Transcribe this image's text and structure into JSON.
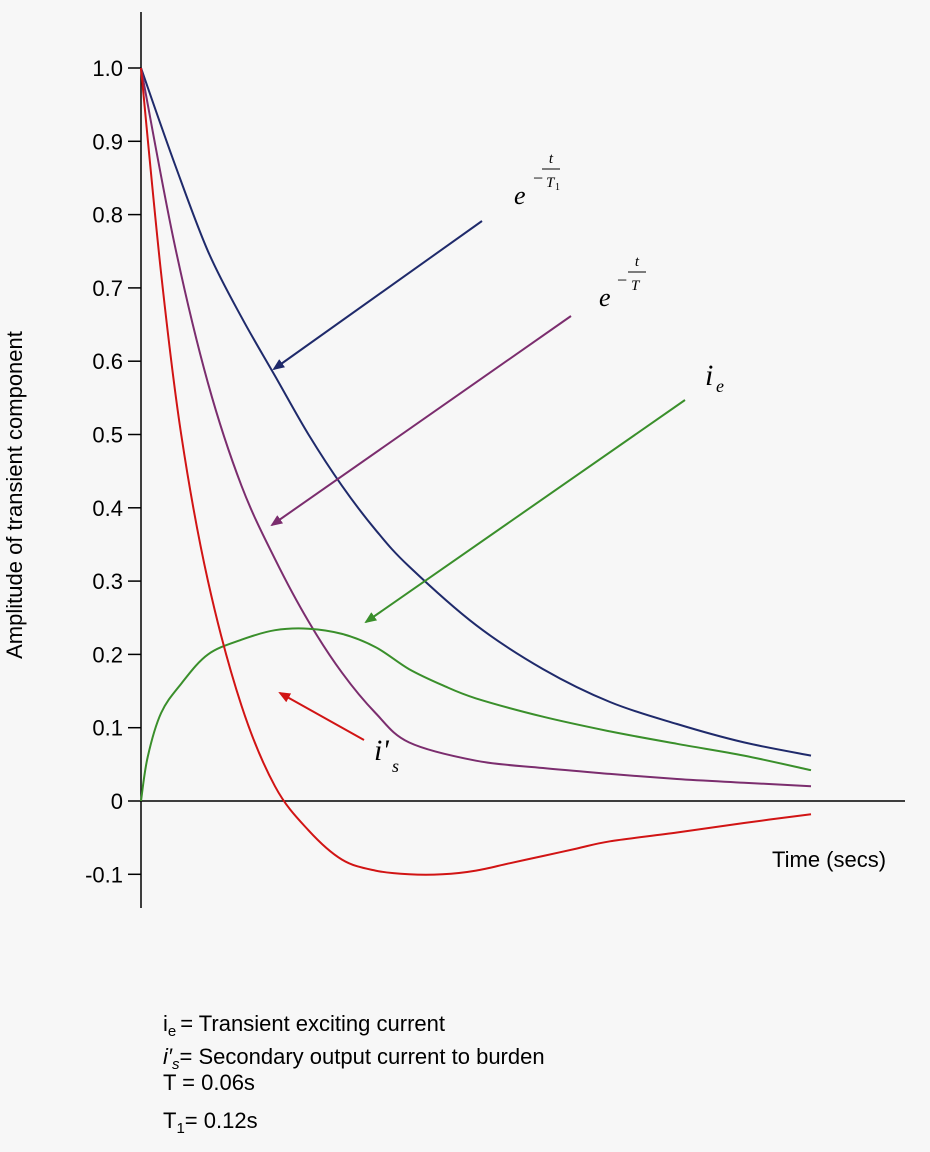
{
  "chart_data": {
    "type": "line",
    "ylabel": "Amplitude of transient component",
    "xlabel": "Time (secs)",
    "ylim": [
      -0.1,
      1.0
    ],
    "yticks": [
      "1.0",
      "0.9",
      "0.8",
      "0.7",
      "0.6",
      "0.5",
      "0.4",
      "0.3",
      "0.2",
      "0.1",
      "0",
      "-0.1"
    ],
    "ytick_values": [
      1.0,
      0.9,
      0.8,
      0.7,
      0.6,
      0.5,
      0.4,
      0.3,
      0.2,
      0.1,
      0,
      -0.1
    ],
    "x_units": "arbitrary (no tick labels)",
    "xlim": [
      0,
      1
    ],
    "grid": false,
    "series": [
      {
        "name": "e^(-t/T1)",
        "color": "#1f2a6b",
        "x": [
          0,
          0.05,
          0.1,
          0.15,
          0.2,
          0.25,
          0.3,
          0.35,
          0.4,
          0.5,
          0.6,
          0.7,
          0.8,
          0.9,
          1.0
        ],
        "y": [
          1.0,
          0.87,
          0.75,
          0.66,
          0.58,
          0.5,
          0.43,
          0.37,
          0.32,
          0.24,
          0.18,
          0.135,
          0.105,
          0.08,
          0.062
        ]
      },
      {
        "name": "e^(-t/T)",
        "color": "#7b2d6e",
        "x": [
          0,
          0.05,
          0.1,
          0.15,
          0.2,
          0.25,
          0.3,
          0.35,
          0.4,
          0.5,
          0.6,
          0.7,
          0.8,
          0.9,
          1.0
        ],
        "y": [
          1.0,
          0.76,
          0.57,
          0.43,
          0.33,
          0.245,
          0.175,
          0.12,
          0.08,
          0.055,
          0.045,
          0.037,
          0.03,
          0.025,
          0.02
        ]
      },
      {
        "name": "i_e",
        "color": "#3a8f2b",
        "x": [
          0,
          0.01,
          0.03,
          0.06,
          0.1,
          0.15,
          0.2,
          0.25,
          0.3,
          0.35,
          0.4,
          0.45,
          0.5,
          0.6,
          0.7,
          0.8,
          0.9,
          1.0
        ],
        "y": [
          0,
          0.06,
          0.12,
          0.16,
          0.2,
          0.22,
          0.233,
          0.235,
          0.228,
          0.21,
          0.18,
          0.158,
          0.14,
          0.115,
          0.095,
          0.078,
          0.062,
          0.042
        ]
      },
      {
        "name": "i's",
        "color": "#d11414",
        "x": [
          0,
          0.03,
          0.06,
          0.1,
          0.15,
          0.2,
          0.25,
          0.3,
          0.35,
          0.4,
          0.45,
          0.5,
          0.55,
          0.6,
          0.65,
          0.7,
          0.8,
          0.9,
          1.0
        ],
        "y": [
          1.0,
          0.72,
          0.5,
          0.3,
          0.13,
          0.02,
          -0.04,
          -0.08,
          -0.095,
          -0.1,
          -0.1,
          -0.095,
          -0.085,
          -0.075,
          -0.065,
          -0.055,
          -0.043,
          -0.03,
          -0.018
        ]
      }
    ],
    "annotations": [
      {
        "id": "T1",
        "base": "e",
        "num": "t",
        "den": "T",
        "den_sub": "1",
        "color": "#1f2a6b"
      },
      {
        "id": "T",
        "base": "e",
        "num": "t",
        "den": "T",
        "color": "#7b2d6e"
      },
      {
        "id": "ie",
        "text": "i",
        "sub": "e",
        "color": "#3a8f2b"
      },
      {
        "id": "is",
        "text": "i'",
        "sub": "s",
        "color": "#d11414"
      }
    ]
  },
  "legend": {
    "line1_sym": "i",
    "line1_sub": "e",
    "line1_text": "= Transient exciting current",
    "line2_sym": "i′",
    "line2_sub": "s",
    "line2_text": "= Secondary output current to burden",
    "line3_text": "T = 0.06s",
    "line4_sym": "T",
    "line4_sub": "1",
    "line4_text": "= 0.12s"
  },
  "labels": {
    "e": "e",
    "minus": "−",
    "t": "t",
    "T": "T",
    "sub1": "1",
    "i": "i",
    "sub_e": "e",
    "i_prime": "i'",
    "sub_s": "s"
  }
}
